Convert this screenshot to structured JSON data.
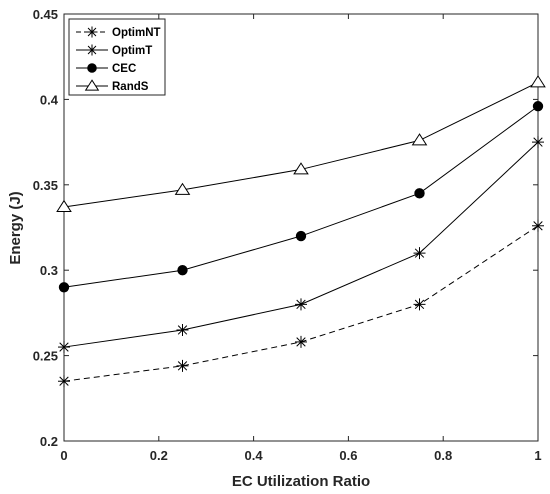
{
  "chart_data": {
    "type": "line",
    "title": "",
    "xlabel": "EC Utilization Ratio",
    "ylabel": "Energy (J)",
    "xlim": [
      0,
      1
    ],
    "ylim": [
      0.2,
      0.45
    ],
    "x_ticks": [
      "0",
      "0.2",
      "0.4",
      "0.6",
      "0.8",
      "1"
    ],
    "y_ticks": [
      "0.2",
      "0.25",
      "0.3",
      "0.35",
      "0.4",
      "0.45"
    ],
    "grid": false,
    "legend_position": "top-left",
    "x": [
      0,
      0.25,
      0.5,
      0.75,
      1
    ],
    "series": [
      {
        "name": "OptimNT",
        "values": [
          0.235,
          0.244,
          0.258,
          0.28,
          0.326
        ],
        "marker": "asterisk",
        "line_style": "dashed",
        "color": "#000000"
      },
      {
        "name": "OptimT",
        "values": [
          0.255,
          0.265,
          0.28,
          0.31,
          0.375
        ],
        "marker": "asterisk",
        "line_style": "solid",
        "color": "#000000"
      },
      {
        "name": "CEC",
        "values": [
          0.29,
          0.3,
          0.32,
          0.345,
          0.396
        ],
        "marker": "filled-circle",
        "line_style": "solid",
        "color": "#000000"
      },
      {
        "name": "RandS",
        "values": [
          0.337,
          0.347,
          0.359,
          0.376,
          0.41
        ],
        "marker": "open-triangle",
        "line_style": "solid",
        "color": "#000000"
      }
    ]
  }
}
